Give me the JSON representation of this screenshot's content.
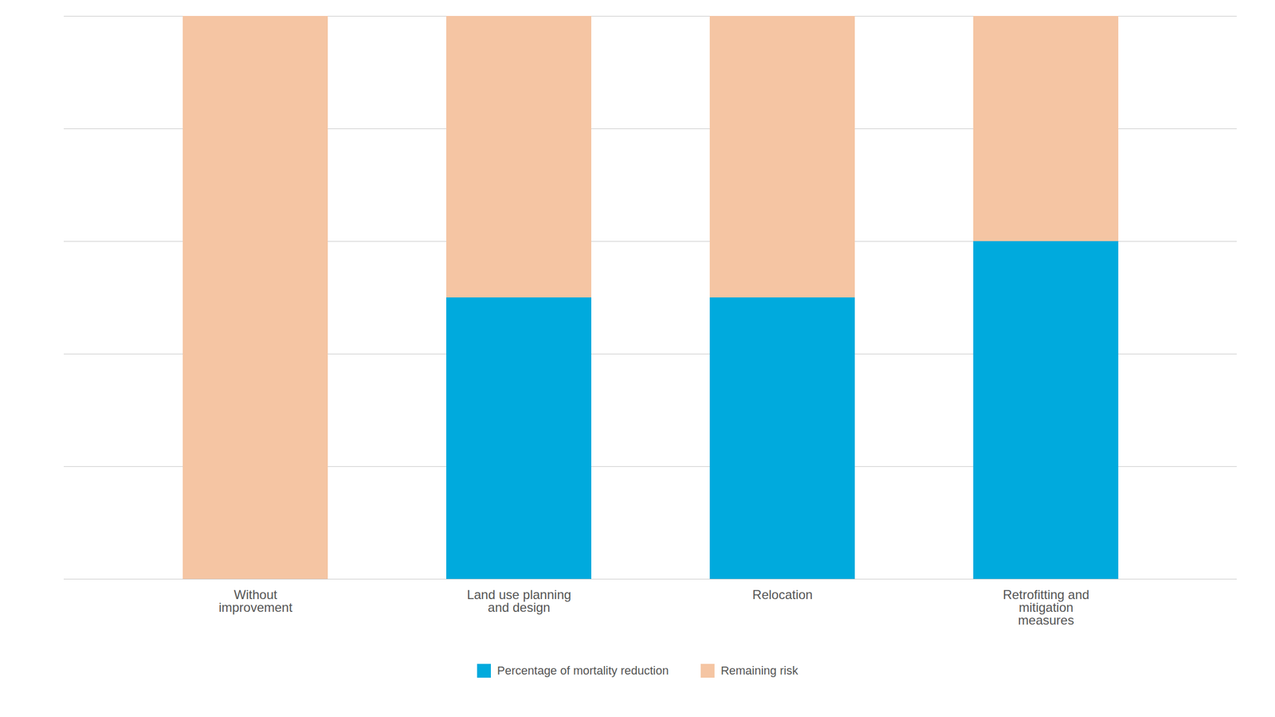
{
  "chart_data": {
    "type": "bar",
    "stacked": true,
    "categories": [
      "Without\nimprovement",
      "Land use planning\nand design",
      "Relocation",
      "Retrofitting and\nmitigation\nmeasures"
    ],
    "series": [
      {
        "name": "Percentage of mortality reduction",
        "color": "#00AADD",
        "values": [
          0,
          50,
          50,
          60
        ]
      },
      {
        "name": "Remaining risk",
        "color": "#F5C5A3",
        "values": [
          100,
          50,
          50,
          40
        ]
      }
    ],
    "ylim": [
      0,
      100
    ],
    "yticks": [
      0,
      20,
      40,
      60,
      80,
      100
    ],
    "grid": true,
    "tick_labels": "x",
    "legend": "bottom"
  }
}
